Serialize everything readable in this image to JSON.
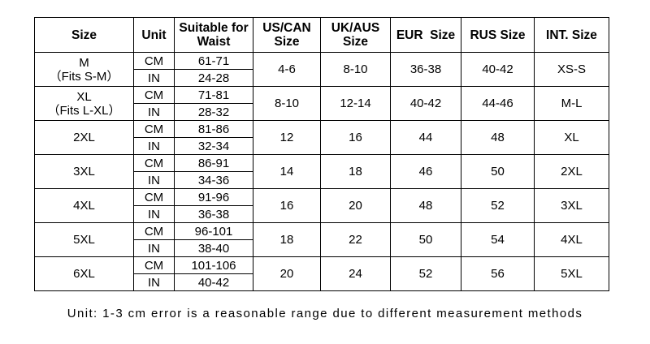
{
  "headers": {
    "size": "Size",
    "unit": "Unit",
    "waist_line1": "Suitable for",
    "waist_line2": "Waist",
    "us_line1": "US/CAN",
    "us_line2": "Size",
    "uk_line1": "UK/AUS",
    "uk_line2": "Size",
    "eur": "EUR  Size",
    "rus": "RUS Size",
    "int": "INT. Size"
  },
  "rows": [
    {
      "size": "M",
      "fits": "（Fits S-M）",
      "cm_unit": "CM",
      "cm": "61-71",
      "in_unit": "IN",
      "inch": "24-28",
      "us": "4-6",
      "uk": "8-10",
      "eur": "36-38",
      "rus": "40-42",
      "int": "XS-S"
    },
    {
      "size": "XL",
      "fits": "（Fits L-XL）",
      "cm_unit": "CM",
      "cm": "71-81",
      "in_unit": "IN",
      "inch": "28-32",
      "us": "8-10",
      "uk": "12-14",
      "eur": "40-42",
      "rus": "44-46",
      "int": "M-L"
    },
    {
      "size": "2XL",
      "fits": "",
      "cm_unit": "CM",
      "cm": "81-86",
      "in_unit": "IN",
      "inch": "32-34",
      "us": "12",
      "uk": "16",
      "eur": "44",
      "rus": "48",
      "int": "XL"
    },
    {
      "size": "3XL",
      "fits": "",
      "cm_unit": "CM",
      "cm": "86-91",
      "in_unit": "IN",
      "inch": "34-36",
      "us": "14",
      "uk": "18",
      "eur": "46",
      "rus": "50",
      "int": "2XL"
    },
    {
      "size": "4XL",
      "fits": "",
      "cm_unit": "CM",
      "cm": "91-96",
      "in_unit": "IN",
      "inch": "36-38",
      "us": "16",
      "uk": "20",
      "eur": "48",
      "rus": "52",
      "int": "3XL"
    },
    {
      "size": "5XL",
      "fits": "",
      "cm_unit": "CM",
      "cm": "96-101",
      "in_unit": "IN",
      "inch": "38-40",
      "us": "18",
      "uk": "22",
      "eur": "50",
      "rus": "54",
      "int": "4XL"
    },
    {
      "size": "6XL",
      "fits": "",
      "cm_unit": "CM",
      "cm": "101-106",
      "in_unit": "IN",
      "inch": "40-42",
      "us": "20",
      "uk": "24",
      "eur": "52",
      "rus": "56",
      "int": "5XL"
    }
  ],
  "footnote": "Unit: 1-3 cm error is a reasonable range due to different measurement methods"
}
